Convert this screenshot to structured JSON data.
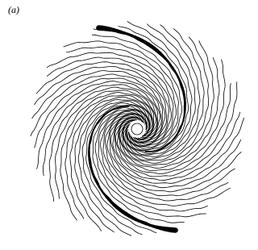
{
  "panel_label": "(a)"
}
